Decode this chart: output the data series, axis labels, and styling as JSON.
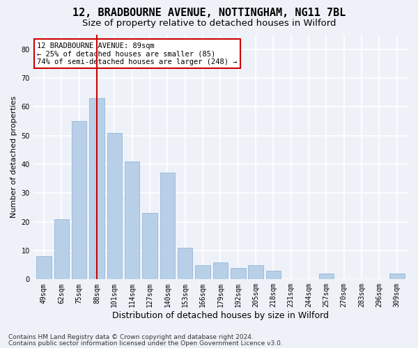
{
  "title_line1": "12, BRADBOURNE AVENUE, NOTTINGHAM, NG11 7BL",
  "title_line2": "Size of property relative to detached houses in Wilford",
  "xlabel": "Distribution of detached houses by size in Wilford",
  "ylabel": "Number of detached properties",
  "categories": [
    "49sqm",
    "62sqm",
    "75sqm",
    "88sqm",
    "101sqm",
    "114sqm",
    "127sqm",
    "140sqm",
    "153sqm",
    "166sqm",
    "179sqm",
    "192sqm",
    "205sqm",
    "218sqm",
    "231sqm",
    "244sqm",
    "257sqm",
    "270sqm",
    "283sqm",
    "296sqm",
    "309sqm"
  ],
  "values": [
    8,
    21,
    55,
    63,
    51,
    41,
    23,
    37,
    11,
    5,
    6,
    4,
    5,
    3,
    0,
    0,
    2,
    0,
    0,
    0,
    2
  ],
  "bar_color": "#b8cfe8",
  "bar_edgecolor": "#8aafd4",
  "highlight_bar_index": 3,
  "vline_x_index": 3,
  "vline_color": "#cc0000",
  "ylim": [
    0,
    85
  ],
  "yticks": [
    0,
    10,
    20,
    30,
    40,
    50,
    60,
    70,
    80
  ],
  "annotation_text": "12 BRADBOURNE AVENUE: 89sqm\n← 25% of detached houses are smaller (85)\n74% of semi-detached houses are larger (248) →",
  "annotation_box_facecolor": "#ffffff",
  "annotation_box_edgecolor": "#cc0000",
  "footer_line1": "Contains HM Land Registry data © Crown copyright and database right 2024.",
  "footer_line2": "Contains public sector information licensed under the Open Government Licence v3.0.",
  "background_color": "#eef2f8",
  "grid_color": "#ffffff",
  "title1_fontsize": 11,
  "title2_fontsize": 9.5,
  "xlabel_fontsize": 9,
  "ylabel_fontsize": 8,
  "tick_fontsize": 7,
  "annotation_fontsize": 7.5,
  "footer_fontsize": 6.5
}
